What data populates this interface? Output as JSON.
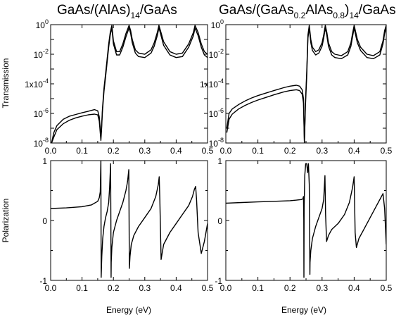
{
  "chart_data": [
    {
      "type": "line",
      "title_parts": [
        "GaAs/(AlAs)",
        "14",
        "/GaAs"
      ],
      "ylabel": "Transmission",
      "yscale": "log",
      "xlim": [
        0.0,
        0.5
      ],
      "ylim": [
        1e-08,
        1
      ],
      "xticks": [
        "0.0",
        "0.1",
        "0.2",
        "0.3",
        "0.4",
        "0.5"
      ],
      "yticks": [
        {
          "value": 1e-08,
          "base": "10",
          "exp": "-8"
        },
        {
          "value": 1e-06,
          "base": "10",
          "exp": "-6"
        },
        {
          "value": 0.0001,
          "base": "1x10",
          "exp": "-4"
        },
        {
          "value": 0.01,
          "base": "10",
          "exp": "-2"
        },
        {
          "value": 1,
          "base": "10",
          "exp": "0"
        }
      ],
      "series": [
        {
          "x": [
            0.003,
            0.01,
            0.02,
            0.04,
            0.06,
            0.08,
            0.1,
            0.12,
            0.14,
            0.15,
            0.155,
            0.16,
            0.162,
            0.165,
            0.17,
            0.175,
            0.18,
            0.185,
            0.19,
            0.195,
            0.2,
            0.21,
            0.22,
            0.23,
            0.24,
            0.25,
            0.255,
            0.26,
            0.27,
            0.28,
            0.3,
            0.32,
            0.33,
            0.34,
            0.345,
            0.35,
            0.36,
            0.38,
            0.4,
            0.42,
            0.44,
            0.455,
            0.46,
            0.47,
            0.48,
            0.49,
            0.5
          ],
          "y": [
            1e-08,
            5e-08,
            1.5e-07,
            4e-07,
            6.5e-07,
            8.5e-07,
            1.1e-06,
            1.4e-06,
            1.8e-06,
            1.5e-06,
            6e-07,
            3e-08,
            1e-07,
            2e-06,
            5e-05,
            0.0005,
            0.005,
            0.05,
            0.3,
            0.9,
            0.08,
            0.015,
            0.015,
            0.05,
            0.25,
            0.9,
            0.4,
            0.1,
            0.02,
            0.012,
            0.01,
            0.02,
            0.06,
            0.3,
            0.9,
            0.4,
            0.07,
            0.015,
            0.01,
            0.012,
            0.05,
            0.3,
            0.9,
            0.3,
            0.05,
            0.015,
            0.01
          ]
        },
        {
          "x": [
            0.003,
            0.01,
            0.02,
            0.04,
            0.06,
            0.08,
            0.1,
            0.12,
            0.14,
            0.15,
            0.155,
            0.16,
            0.162,
            0.165,
            0.17,
            0.175,
            0.18,
            0.185,
            0.19,
            0.195,
            0.2,
            0.21,
            0.22,
            0.23,
            0.24,
            0.25,
            0.255,
            0.26,
            0.27,
            0.28,
            0.3,
            0.32,
            0.33,
            0.34,
            0.345,
            0.35,
            0.36,
            0.38,
            0.4,
            0.42,
            0.44,
            0.455,
            0.46,
            0.47,
            0.48,
            0.49,
            0.5
          ],
          "y": [
            1e-08,
            2.5e-08,
            8e-08,
            2e-07,
            3.5e-07,
            5e-07,
            6.5e-07,
            8e-07,
            9e-07,
            8e-07,
            3e-07,
            1.5e-08,
            7e-08,
            1.3e-06,
            3e-05,
            0.0003,
            0.003,
            0.03,
            0.2,
            0.6,
            0.05,
            0.009,
            0.009,
            0.03,
            0.15,
            0.6,
            0.25,
            0.06,
            0.012,
            0.007,
            0.006,
            0.012,
            0.035,
            0.18,
            0.6,
            0.25,
            0.04,
            0.009,
            0.006,
            0.007,
            0.03,
            0.18,
            0.6,
            0.18,
            0.03,
            0.009,
            0.006
          ]
        }
      ]
    },
    {
      "type": "line",
      "title_parts": [
        "GaAs/(GaAs",
        "0.2",
        "AlAs",
        "0.8",
        ")",
        "14",
        "/GaAs"
      ],
      "ylabel": "",
      "yscale": "log",
      "xlim": [
        0.0,
        0.5
      ],
      "ylim": [
        1e-08,
        1
      ],
      "xticks": [
        "0.0",
        "0.1",
        "0.2",
        "0.3",
        "0.4",
        "0.5"
      ],
      "series": [
        {
          "x": [
            0.003,
            0.01,
            0.02,
            0.04,
            0.06,
            0.08,
            0.1,
            0.12,
            0.15,
            0.18,
            0.2,
            0.22,
            0.23,
            0.238,
            0.242,
            0.245,
            0.248,
            0.252,
            0.256,
            0.26,
            0.265,
            0.27,
            0.28,
            0.29,
            0.3,
            0.305,
            0.31,
            0.315,
            0.32,
            0.33,
            0.34,
            0.36,
            0.38,
            0.39,
            0.395,
            0.4,
            0.405,
            0.41,
            0.42,
            0.44,
            0.46,
            0.48,
            0.49,
            0.495,
            0.5
          ],
          "y": [
            1e-07,
            1e-06,
            2e-06,
            4e-06,
            7e-06,
            1.1e-05,
            1.6e-05,
            2.2e-05,
            3.5e-05,
            5.5e-05,
            7e-05,
            8e-05,
            7e-05,
            4e-05,
            1e-05,
            1e-08,
            5e-06,
            0.0005,
            0.2,
            0.9,
            0.1,
            0.03,
            0.015,
            0.02,
            0.06,
            0.2,
            0.9,
            0.3,
            0.06,
            0.015,
            0.01,
            0.008,
            0.015,
            0.06,
            0.25,
            0.9,
            0.3,
            0.1,
            0.03,
            0.01,
            0.008,
            0.015,
            0.08,
            0.4,
            0.9
          ]
        },
        {
          "x": [
            0.003,
            0.01,
            0.02,
            0.04,
            0.06,
            0.08,
            0.1,
            0.12,
            0.15,
            0.18,
            0.2,
            0.22,
            0.23,
            0.238,
            0.242,
            0.245,
            0.248,
            0.252,
            0.256,
            0.26,
            0.265,
            0.27,
            0.28,
            0.29,
            0.3,
            0.305,
            0.31,
            0.315,
            0.32,
            0.33,
            0.34,
            0.36,
            0.38,
            0.39,
            0.395,
            0.4,
            0.405,
            0.41,
            0.42,
            0.44,
            0.46,
            0.48,
            0.49,
            0.495,
            0.5
          ],
          "y": [
            5e-08,
            4e-07,
            9e-07,
            2e-06,
            3.5e-06,
            5.5e-06,
            8e-06,
            1.1e-05,
            1.8e-05,
            2.8e-05,
            3.5e-05,
            4e-05,
            3.5e-05,
            2e-05,
            5e-06,
            1e-08,
            2.5e-06,
            0.00025,
            0.12,
            0.6,
            0.06,
            0.018,
            0.009,
            0.012,
            0.035,
            0.12,
            0.6,
            0.18,
            0.035,
            0.009,
            0.006,
            0.005,
            0.009,
            0.035,
            0.15,
            0.6,
            0.18,
            0.06,
            0.018,
            0.006,
            0.005,
            0.009,
            0.05,
            0.25,
            0.6
          ]
        }
      ]
    },
    {
      "type": "line",
      "ylabel": "Polarization",
      "xlabel": "Energy (eV)",
      "yscale": "linear",
      "xlim": [
        0.0,
        0.5
      ],
      "ylim": [
        -1,
        1
      ],
      "xticks": [
        "0.0",
        "0.1",
        "0.2",
        "0.3",
        "0.4",
        "0.5"
      ],
      "yticks": [
        "-1",
        "0",
        "1"
      ],
      "series": [
        {
          "x": [
            0.0,
            0.05,
            0.1,
            0.13,
            0.15,
            0.155,
            0.158,
            0.16,
            0.1605,
            0.161,
            0.163,
            0.166,
            0.17,
            0.175,
            0.18,
            0.185,
            0.188,
            0.191,
            0.192,
            0.1925,
            0.193,
            0.195,
            0.2,
            0.21,
            0.22,
            0.23,
            0.24,
            0.245,
            0.249,
            0.25,
            0.251,
            0.253,
            0.257,
            0.265,
            0.28,
            0.3,
            0.32,
            0.335,
            0.343,
            0.346,
            0.348,
            0.352,
            0.36,
            0.38,
            0.4,
            0.42,
            0.44,
            0.452,
            0.458,
            0.462,
            0.465,
            0.47,
            0.48,
            0.49,
            0.5
          ],
          "y": [
            0.2,
            0.21,
            0.23,
            0.26,
            0.32,
            0.38,
            0.48,
            1.0,
            0.0,
            -0.95,
            -0.6,
            -0.3,
            -0.1,
            0.05,
            0.15,
            0.3,
            0.55,
            0.95,
            0.0,
            -0.95,
            -0.7,
            -0.45,
            -0.2,
            0.0,
            0.15,
            0.3,
            0.5,
            0.65,
            0.85,
            0.0,
            -0.8,
            -0.6,
            -0.4,
            -0.25,
            -0.1,
            0.05,
            0.2,
            0.4,
            0.6,
            0.73,
            0.35,
            -0.65,
            -0.4,
            -0.2,
            -0.05,
            0.1,
            0.25,
            0.4,
            0.52,
            0.57,
            0.35,
            -0.2,
            -0.55,
            -0.35,
            -0.05
          ]
        }
      ]
    },
    {
      "type": "line",
      "ylabel": "",
      "xlabel": "Energy (eV)",
      "yscale": "linear",
      "xlim": [
        0.0,
        0.5
      ],
      "ylim": [
        -1,
        1
      ],
      "xticks": [
        "0.0",
        "0.1",
        "0.2",
        "0.3",
        "0.4",
        "0.5"
      ],
      "yticks": [
        "-1",
        "0",
        "1"
      ],
      "series": [
        {
          "x": [
            0.0,
            0.05,
            0.1,
            0.15,
            0.2,
            0.22,
            0.235,
            0.24,
            0.242,
            0.243,
            0.2435,
            0.244,
            0.246,
            0.249,
            0.252,
            0.255,
            0.2575,
            0.26,
            0.262,
            0.2625,
            0.265,
            0.27,
            0.28,
            0.29,
            0.3,
            0.305,
            0.309,
            0.311,
            0.314,
            0.32,
            0.33,
            0.35,
            0.37,
            0.385,
            0.395,
            0.4,
            0.403,
            0.407,
            0.415,
            0.43,
            0.45,
            0.47,
            0.485,
            0.49,
            0.495,
            0.5
          ],
          "y": [
            0.29,
            0.3,
            0.31,
            0.32,
            0.33,
            0.34,
            0.35,
            0.36,
            0.4,
            0.0,
            -0.95,
            0.2,
            0.75,
            0.95,
            0.95,
            0.8,
            0.95,
            0.6,
            -0.9,
            -0.7,
            -0.5,
            -0.3,
            -0.1,
            0.05,
            0.2,
            0.35,
            0.75,
            0.1,
            -0.35,
            -0.25,
            -0.15,
            -0.05,
            0.1,
            0.3,
            0.55,
            0.73,
            -0.2,
            -0.45,
            -0.3,
            -0.15,
            0.05,
            0.25,
            0.4,
            0.45,
            0.2,
            -0.4
          ]
        }
      ]
    }
  ]
}
